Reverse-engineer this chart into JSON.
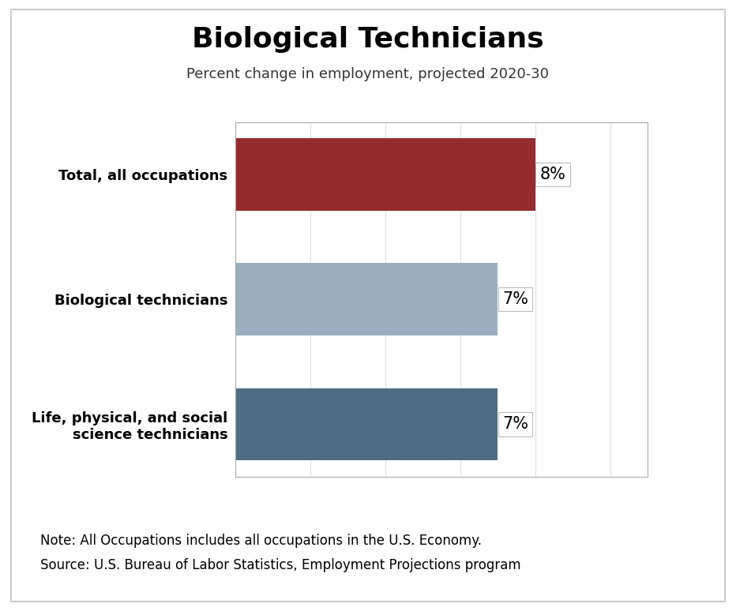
{
  "title": "Biological Technicians",
  "subtitle": "Percent change in employment, projected 2020-30",
  "categories": [
    "Life, physical, and social\nscience technicians",
    "Biological technicians",
    "Total, all occupations"
  ],
  "values": [
    7,
    7,
    8
  ],
  "bar_colors": [
    "#4d6d82",
    "#9ab0be",
    "#962b2b"
  ],
  "label_texts": [
    "7%",
    "7%",
    "8%"
  ],
  "xlim": [
    0,
    11
  ],
  "xticks": [
    0,
    2,
    4,
    6,
    8,
    10
  ],
  "note_line1": "Note: All Occupations includes all occupations in the U.S. Economy.",
  "note_line2": "Source: U.S. Bureau of Labor Statistics, Employment Projections program",
  "background_color": "#ffffff",
  "chart_bg_color": "#ffffff",
  "outer_border_color": "#cccccc",
  "chart_border_color": "#aaaaaa",
  "grid_color": "#e0e0e0",
  "title_fontsize": 26,
  "subtitle_fontsize": 13,
  "label_fontsize": 15,
  "ytick_fontsize": 13,
  "note_fontsize": 12,
  "bar_height": 0.58
}
